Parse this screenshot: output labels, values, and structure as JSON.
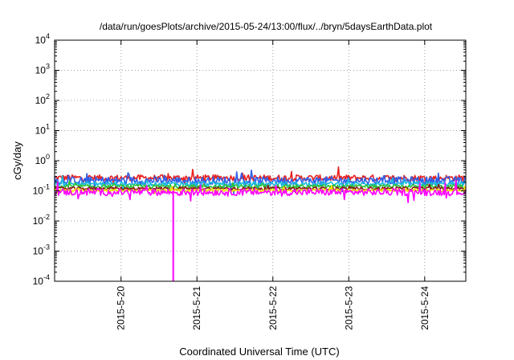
{
  "chart_data": {
    "type": "line",
    "title": "/data/run/goesPlots/archive/2015-05-24/13:00/flux/../bryn/5daysEarthData.plot",
    "xlabel": "Coordinated Universal Time (UTC)",
    "ylabel": "cGy/day",
    "yscale": "log",
    "ylim": [
      0.0001,
      10000
    ],
    "xlim": [
      "2015-05-19T03:00",
      "2015-05-24T13:00"
    ],
    "y_ticks": [
      {
        "value": 0.0001,
        "base": "10",
        "exp": "-4"
      },
      {
        "value": 0.001,
        "base": "10",
        "exp": "-3"
      },
      {
        "value": 0.01,
        "base": "10",
        "exp": "-2"
      },
      {
        "value": 0.1,
        "base": "10",
        "exp": "-1"
      },
      {
        "value": 1,
        "base": "10",
        "exp": "0"
      },
      {
        "value": 10,
        "base": "10",
        "exp": "1"
      },
      {
        "value": 100,
        "base": "10",
        "exp": "2"
      },
      {
        "value": 1000,
        "base": "10",
        "exp": "3"
      },
      {
        "value": 10000,
        "base": "10",
        "exp": "4"
      }
    ],
    "x_ticks": [
      {
        "value": "2015-05-20T00:00",
        "label": "2015-5-20"
      },
      {
        "value": "2015-05-21T00:00",
        "label": "2015-5-21"
      },
      {
        "value": "2015-05-22T00:00",
        "label": "2015-5-22"
      },
      {
        "value": "2015-05-23T00:00",
        "label": "2015-5-23"
      },
      {
        "value": "2015-05-24T00:00",
        "label": "2015-5-24"
      }
    ],
    "grid": true,
    "legend": "none",
    "series": [
      {
        "color": "#e8211e",
        "level": 0.27,
        "spread": 0.2
      },
      {
        "color": "#2f5fe8",
        "level": 0.22,
        "spread": 0.25
      },
      {
        "color": "#19b8e0",
        "level": 0.17,
        "spread": 0.15
      },
      {
        "color": "#2ec13a",
        "level": 0.14,
        "spread": 0.12
      },
      {
        "color": "#8b1a1a",
        "level": 0.12,
        "spread": 0.1
      },
      {
        "color": "#f0e000",
        "level": 0.105,
        "spread": 0.08
      },
      {
        "color": "#ff00ff",
        "level": 0.09,
        "spread": 0.22
      }
    ],
    "events": [
      {
        "color": "#ff00ff",
        "time": "2015-05-20T16:30",
        "min_value": 0.0001
      }
    ]
  }
}
